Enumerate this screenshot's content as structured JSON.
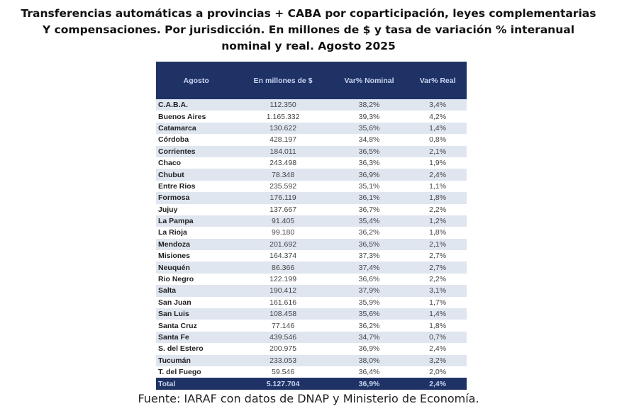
{
  "title": "Transferencias automáticas a provincias + CABA por coparticipación, leyes complementarias Y compensaciones. Por jurisdicción. En millones de $ y tasa de variación % interanual nominal y real. Agosto 2025",
  "title_lines": [
    "Transferencias automáticas a provincias + CABA por coparticipación, leyes complementarias",
    "Y compensaciones. Por jurisdicción. En millones de $ y tasa de variación % interanual",
    "nominal y real. Agosto 2025"
  ],
  "colors": {
    "header_bg": "#1f3266",
    "row_alt": "#dfe6f0"
  },
  "table": {
    "headers": [
      "Agosto",
      "En millones de $",
      "Var% Nominal",
      "Var% Real"
    ],
    "rows": [
      [
        "C.A.B.A.",
        "112.350",
        "38,2%",
        "3,4%"
      ],
      [
        "Buenos Aires",
        "1.165.332",
        "39,3%",
        "4,2%"
      ],
      [
        "Catamarca",
        "130.622",
        "35,6%",
        "1,4%"
      ],
      [
        "Córdoba",
        "428.197",
        "34,8%",
        "0,8%"
      ],
      [
        "Corrientes",
        "184.011",
        "36,5%",
        "2,1%"
      ],
      [
        "Chaco",
        "243.498",
        "36,3%",
        "1,9%"
      ],
      [
        "Chubut",
        "78.348",
        "36,9%",
        "2,4%"
      ],
      [
        "Entre Rios",
        "235.592",
        "35,1%",
        "1,1%"
      ],
      [
        "Formosa",
        "176.119",
        "36,1%",
        "1,8%"
      ],
      [
        "Jujuy",
        "137.667",
        "36,7%",
        "2,2%"
      ],
      [
        "La Pampa",
        "91.405",
        "35,4%",
        "1,2%"
      ],
      [
        "La Rioja",
        "99.180",
        "36,2%",
        "1,8%"
      ],
      [
        "Mendoza",
        "201.692",
        "36,5%",
        "2,1%"
      ],
      [
        "Misiones",
        "164.374",
        "37,3%",
        "2,7%"
      ],
      [
        "Neuquén",
        "86.366",
        "37,4%",
        "2,7%"
      ],
      [
        "Rio Negro",
        "122.199",
        "36,6%",
        "2,2%"
      ],
      [
        "Salta",
        "190.412",
        "37,9%",
        "3,1%"
      ],
      [
        "San Juan",
        "161.616",
        "35,9%",
        "1,7%"
      ],
      [
        "San Luis",
        "108.458",
        "35,6%",
        "1,4%"
      ],
      [
        "Santa Cruz",
        "77.146",
        "36,2%",
        "1,8%"
      ],
      [
        "Santa Fe",
        "439.546",
        "34,7%",
        "0,7%"
      ],
      [
        "S. del Estero",
        "200.975",
        "36,9%",
        "2,4%"
      ],
      [
        "Tucumán",
        "233.053",
        "38,0%",
        "3,2%"
      ],
      [
        "T. del Fuego",
        "59.546",
        "36,4%",
        "2,0%"
      ]
    ],
    "total": [
      "Total",
      "5.127.704",
      "36,9%",
      "2,4%"
    ]
  },
  "footer": "Fuente: IARAF con datos de DNAP y Ministerio de Economía."
}
